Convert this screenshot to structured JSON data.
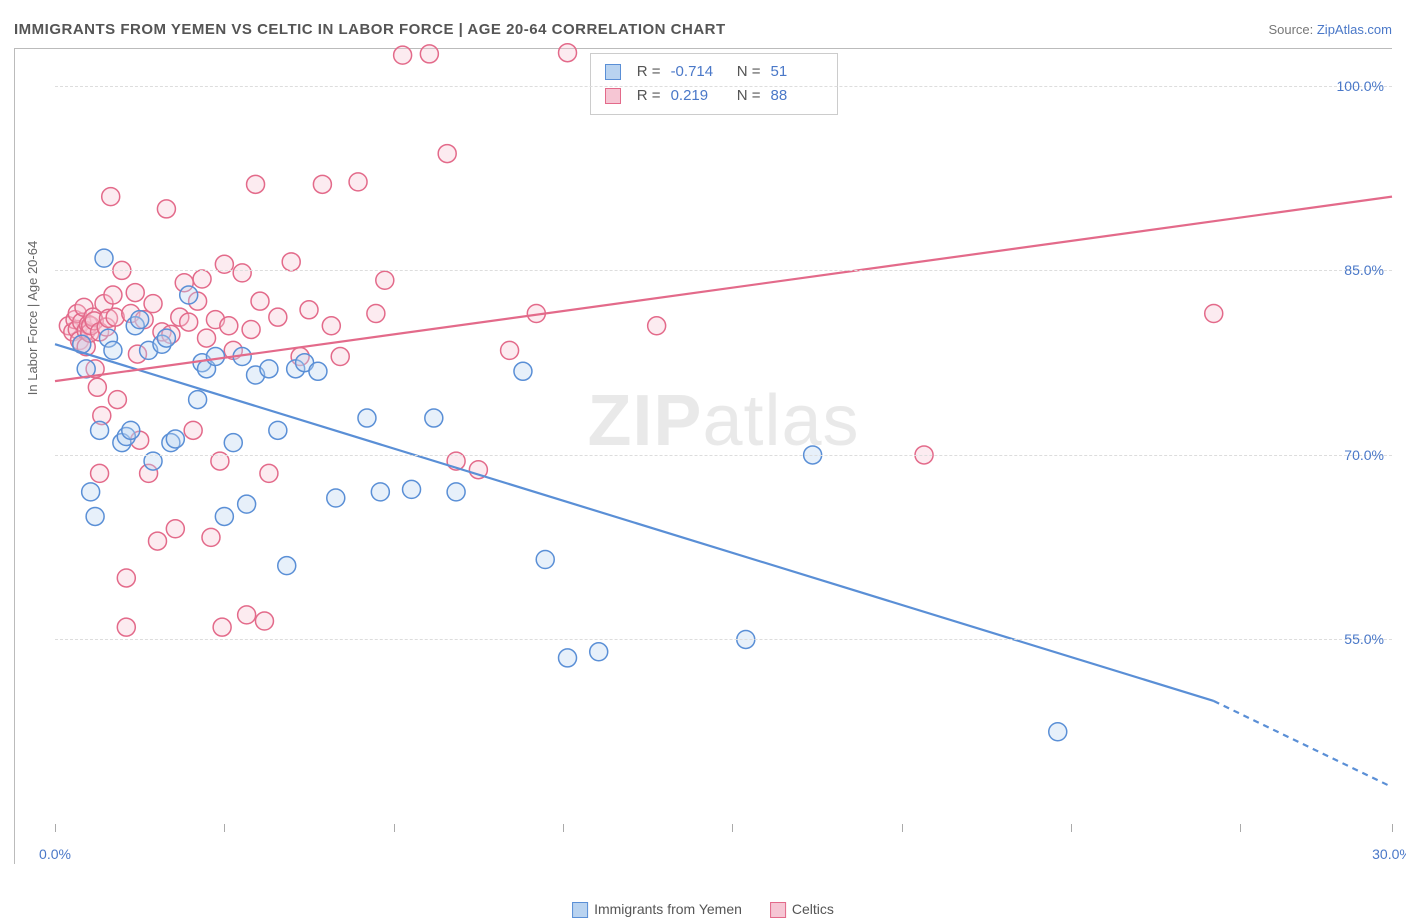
{
  "title": "IMMIGRANTS FROM YEMEN VS CELTIC IN LABOR FORCE | AGE 20-64 CORRELATION CHART",
  "source_prefix": "Source: ",
  "source_link": "ZipAtlas.com",
  "ylabel": "In Labor Force | Age 20-64",
  "watermark_a": "ZIP",
  "watermark_b": "atlas",
  "chart": {
    "type": "scatter",
    "xlim": [
      0,
      30
    ],
    "ylim": [
      40,
      103
    ],
    "xtick_label_left": "0.0%",
    "xtick_label_right": "30.0%",
    "xtick_positions": [
      0,
      3.8,
      7.6,
      11.4,
      15.2,
      19.0,
      22.8,
      26.6,
      30.0
    ],
    "ytick_values": [
      55,
      70,
      85,
      100
    ],
    "ytick_labels": [
      "55.0%",
      "70.0%",
      "85.0%",
      "100.0%"
    ],
    "background_color": "#ffffff",
    "grid_color": "#dddddd",
    "marker_radius": 9,
    "marker_stroke_width": 1.5,
    "marker_fill_opacity": 0.35,
    "line_width": 2.2,
    "series": [
      {
        "name": "Immigrants from Yemen",
        "color": "#5a8fd6",
        "fill": "#b9d3f0",
        "R": "-0.714",
        "N": "51",
        "trend": {
          "x1": 0,
          "y1": 79,
          "x2": 26,
          "y2": 50,
          "dash_ext_x2": 30,
          "dash_ext_y2": 43
        },
        "points": [
          [
            0.6,
            79
          ],
          [
            0.7,
            77
          ],
          [
            0.8,
            67
          ],
          [
            0.9,
            65
          ],
          [
            1.0,
            72
          ],
          [
            1.1,
            86
          ],
          [
            1.2,
            79.5
          ],
          [
            1.3,
            78.5
          ],
          [
            1.5,
            71
          ],
          [
            1.6,
            71.5
          ],
          [
            1.7,
            72
          ],
          [
            1.8,
            80.5
          ],
          [
            1.9,
            81
          ],
          [
            2.1,
            78.5
          ],
          [
            2.2,
            69.5
          ],
          [
            2.4,
            79
          ],
          [
            2.5,
            79.5
          ],
          [
            2.6,
            71
          ],
          [
            2.7,
            71.3
          ],
          [
            3.0,
            83
          ],
          [
            3.2,
            74.5
          ],
          [
            3.3,
            77.5
          ],
          [
            3.4,
            77
          ],
          [
            3.6,
            78
          ],
          [
            3.8,
            65
          ],
          [
            4.0,
            71
          ],
          [
            4.2,
            78
          ],
          [
            4.3,
            66
          ],
          [
            4.5,
            76.5
          ],
          [
            4.8,
            77
          ],
          [
            5.0,
            72
          ],
          [
            5.2,
            61
          ],
          [
            5.4,
            77
          ],
          [
            5.6,
            77.5
          ],
          [
            5.9,
            76.8
          ],
          [
            6.3,
            66.5
          ],
          [
            7.0,
            73
          ],
          [
            7.3,
            67
          ],
          [
            8.0,
            67.2
          ],
          [
            8.5,
            73
          ],
          [
            9.0,
            67
          ],
          [
            10.5,
            76.8
          ],
          [
            11.0,
            61.5
          ],
          [
            11.5,
            53.5
          ],
          [
            12.2,
            54
          ],
          [
            15.5,
            55
          ],
          [
            17.0,
            70
          ],
          [
            22.5,
            47.5
          ]
        ]
      },
      {
        "name": "Celtics",
        "color": "#e36a8a",
        "fill": "#f6c6d4",
        "R": "0.219",
        "N": "88",
        "trend": {
          "x1": 0,
          "y1": 76,
          "x2": 30,
          "y2": 91
        },
        "points": [
          [
            0.3,
            80.5
          ],
          [
            0.4,
            80
          ],
          [
            0.45,
            81
          ],
          [
            0.5,
            80.2
          ],
          [
            0.5,
            81.5
          ],
          [
            0.55,
            79.3
          ],
          [
            0.6,
            80.8
          ],
          [
            0.6,
            79
          ],
          [
            0.65,
            82
          ],
          [
            0.7,
            80.1
          ],
          [
            0.7,
            78.8
          ],
          [
            0.75,
            80.6
          ],
          [
            0.78,
            79.9
          ],
          [
            0.8,
            80.5
          ],
          [
            0.85,
            81.2
          ],
          [
            0.88,
            80.9
          ],
          [
            0.9,
            77
          ],
          [
            0.95,
            75.5
          ],
          [
            1.0,
            80
          ],
          [
            1.0,
            68.5
          ],
          [
            1.05,
            73.2
          ],
          [
            1.1,
            82.3
          ],
          [
            1.15,
            80.4
          ],
          [
            1.2,
            81.1
          ],
          [
            1.25,
            91
          ],
          [
            1.3,
            83
          ],
          [
            1.35,
            81.2
          ],
          [
            1.4,
            74.5
          ],
          [
            1.5,
            85
          ],
          [
            1.6,
            56
          ],
          [
            1.6,
            60
          ],
          [
            1.7,
            81.5
          ],
          [
            1.8,
            83.2
          ],
          [
            1.85,
            78.2
          ],
          [
            1.9,
            71.2
          ],
          [
            2.0,
            81
          ],
          [
            2.1,
            68.5
          ],
          [
            2.2,
            82.3
          ],
          [
            2.3,
            63
          ],
          [
            2.4,
            80
          ],
          [
            2.5,
            90
          ],
          [
            2.6,
            79.8
          ],
          [
            2.7,
            64
          ],
          [
            2.8,
            81.2
          ],
          [
            2.9,
            84
          ],
          [
            3.0,
            80.8
          ],
          [
            3.1,
            72
          ],
          [
            3.2,
            82.5
          ],
          [
            3.3,
            84.3
          ],
          [
            3.4,
            79.5
          ],
          [
            3.5,
            63.3
          ],
          [
            3.6,
            81
          ],
          [
            3.7,
            69.5
          ],
          [
            3.75,
            56
          ],
          [
            3.8,
            85.5
          ],
          [
            3.9,
            80.5
          ],
          [
            4.0,
            78.5
          ],
          [
            4.2,
            84.8
          ],
          [
            4.3,
            57
          ],
          [
            4.4,
            80.2
          ],
          [
            4.5,
            92
          ],
          [
            4.6,
            82.5
          ],
          [
            4.7,
            56.5
          ],
          [
            4.8,
            68.5
          ],
          [
            5.0,
            81.2
          ],
          [
            5.3,
            85.7
          ],
          [
            5.5,
            78
          ],
          [
            5.7,
            81.8
          ],
          [
            6.0,
            92
          ],
          [
            6.2,
            80.5
          ],
          [
            6.4,
            78
          ],
          [
            6.8,
            92.2
          ],
          [
            7.2,
            81.5
          ],
          [
            7.4,
            84.2
          ],
          [
            7.8,
            102.5
          ],
          [
            8.4,
            102.6
          ],
          [
            8.8,
            94.5
          ],
          [
            9.0,
            69.5
          ],
          [
            9.5,
            68.8
          ],
          [
            10.2,
            78.5
          ],
          [
            10.8,
            81.5
          ],
          [
            11.5,
            102.7
          ],
          [
            13.5,
            80.5
          ],
          [
            19.5,
            70
          ],
          [
            26.0,
            81.5
          ]
        ]
      }
    ]
  },
  "bottom_legend": {
    "a": "Immigrants from Yemen",
    "b": "Celtics"
  }
}
